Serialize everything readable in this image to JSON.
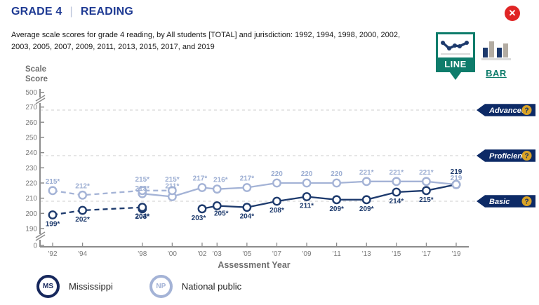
{
  "header": {
    "grade": "GRADE 4",
    "divider": "|",
    "subject": "READING"
  },
  "subtitle": "Average scale scores for grade 4 reading, by All students [TOTAL] and jurisdiction: 1992, 1994, 1998, 2000, 2002, 2003, 2005, 2007, 2009, 2011, 2013, 2015, 2017, and 2019",
  "controls": {
    "close_icon": "✕",
    "chart_type": {
      "line_label": "LINE",
      "bar_label": "BAR",
      "selected": "LINE"
    }
  },
  "legend": [
    {
      "abbr": "MS",
      "label": "Mississippi",
      "color_key": "navy_dark"
    },
    {
      "abbr": "NP",
      "label": "National public",
      "color_key": "light_blue"
    }
  ],
  "colors": {
    "navy": "#1d3a6d",
    "navy_dark": "#16275c",
    "light_blue": "#a4b3d6",
    "light_blue_label": "#9badd2",
    "badge_navy": "#0d2a66",
    "gold": "#d9a326",
    "teal": "#0e7c6b",
    "red": "#e02525",
    "axis_gray": "#8c8c8c",
    "tick_label_gray": "#7a7a7a",
    "gridline_gray": "#d6d6d6",
    "title_blue": "#1e3a93",
    "bar_icon_gray": "#b3aca2"
  },
  "chart_data": {
    "type": "line",
    "xlabel": "Assessment Year",
    "ylabel": "Scale Score",
    "y_ticks": [
      270,
      260,
      250,
      240,
      230,
      220,
      210,
      200,
      190
    ],
    "y_tick_top": "500",
    "y_tick_bottom": "0",
    "ylim": [
      185,
      276
    ],
    "x_ticks": [
      {
        "year": 1992,
        "label": "'92"
      },
      {
        "year": 1994,
        "label": "'94"
      },
      {
        "year": 1998,
        "label": "'98"
      },
      {
        "year": 2000,
        "label": "'00"
      },
      {
        "year": 2002,
        "label": "'02"
      },
      {
        "year": 2003,
        "label": "'03"
      },
      {
        "year": 2005,
        "label": "'05"
      },
      {
        "year": 2007,
        "label": "'07"
      },
      {
        "year": 2009,
        "label": "'09"
      },
      {
        "year": 2011,
        "label": "'11"
      },
      {
        "year": 2013,
        "label": "'13"
      },
      {
        "year": 2015,
        "label": "'15"
      },
      {
        "year": 2017,
        "label": "'17"
      },
      {
        "year": 2019,
        "label": "'19"
      }
    ],
    "achievement_levels": [
      {
        "label": "Advanced",
        "score": 268,
        "help_icon": "?"
      },
      {
        "label": "Proficient",
        "score": 238,
        "help_icon": "?"
      },
      {
        "label": "Basic",
        "score": 208,
        "help_icon": "?"
      }
    ],
    "series": [
      {
        "id": "national-public-dashed",
        "name": "National public",
        "style": "dashed",
        "color_key": "light_blue",
        "label_color_key": "light_blue_label",
        "label_position": "above",
        "points": [
          {
            "year": 1992,
            "value": 215,
            "label": "215*"
          },
          {
            "year": 1994,
            "value": 212,
            "label": "212*"
          },
          {
            "year": 1998,
            "value": 215,
            "label": "215*",
            "ldy": -13
          },
          {
            "year": 2000,
            "value": 215,
            "label": "215*",
            "ldy": -13
          }
        ]
      },
      {
        "id": "national-public-solid",
        "name": "National public",
        "style": "solid",
        "color_key": "light_blue",
        "label_color_key": "light_blue_label",
        "label_position": "above",
        "points": [
          {
            "year": 1998,
            "value": 213,
            "label": "213*",
            "ldy": -4
          },
          {
            "year": 2000,
            "value": 211,
            "label": "211*",
            "ldy": -12
          },
          {
            "year": 2002,
            "value": 217,
            "label": "217*",
            "ldx": -3
          },
          {
            "year": 2003,
            "value": 216,
            "label": "216*",
            "ldx": 5
          },
          {
            "year": 2005,
            "value": 217,
            "label": "217*"
          },
          {
            "year": 2007,
            "value": 220,
            "label": "220"
          },
          {
            "year": 2009,
            "value": 220,
            "label": "220"
          },
          {
            "year": 2011,
            "value": 220,
            "label": "220"
          },
          {
            "year": 2013,
            "value": 221,
            "label": "221*"
          },
          {
            "year": 2015,
            "value": 221,
            "label": "221*"
          },
          {
            "year": 2017,
            "value": 221,
            "label": "221*"
          },
          {
            "year": 2019,
            "value": 219,
            "label": "219",
            "ldy": -6
          }
        ]
      },
      {
        "id": "mississippi-dashed",
        "name": "Mississippi",
        "style": "dashed",
        "color_key": "navy",
        "label_color_key": "navy",
        "label_position": "below",
        "points": [
          {
            "year": 1992,
            "value": 199,
            "label": "199*"
          },
          {
            "year": 1994,
            "value": 202,
            "label": "202*"
          },
          {
            "year": 1998,
            "value": 204,
            "label": "204*",
            "ldy": 16
          }
        ]
      },
      {
        "id": "mississippi-solid",
        "name": "Mississippi",
        "style": "solid",
        "color_key": "navy",
        "label_color_key": "navy",
        "label_position": "below",
        "points": [
          {
            "year": 1998,
            "value": 203,
            "label": "203*",
            "ldy": 14,
            "gap_after": true
          },
          {
            "year": 2002,
            "value": 203,
            "label": "203*",
            "ldx": -5
          },
          {
            "year": 2003,
            "value": 205,
            "label": "205*",
            "ldx": 6,
            "ldy": 14
          },
          {
            "year": 2005,
            "value": 204,
            "label": "204*"
          },
          {
            "year": 2007,
            "value": 208,
            "label": "208*"
          },
          {
            "year": 2009,
            "value": 211,
            "label": "211*"
          },
          {
            "year": 2011,
            "value": 209,
            "label": "209*"
          },
          {
            "year": 2013,
            "value": 209,
            "label": "209*"
          },
          {
            "year": 2015,
            "value": 214,
            "label": "214*"
          },
          {
            "year": 2017,
            "value": 215,
            "label": "215*"
          },
          {
            "year": 2019,
            "value": 219,
            "label": "219",
            "ldy": -15
          }
        ]
      }
    ]
  }
}
